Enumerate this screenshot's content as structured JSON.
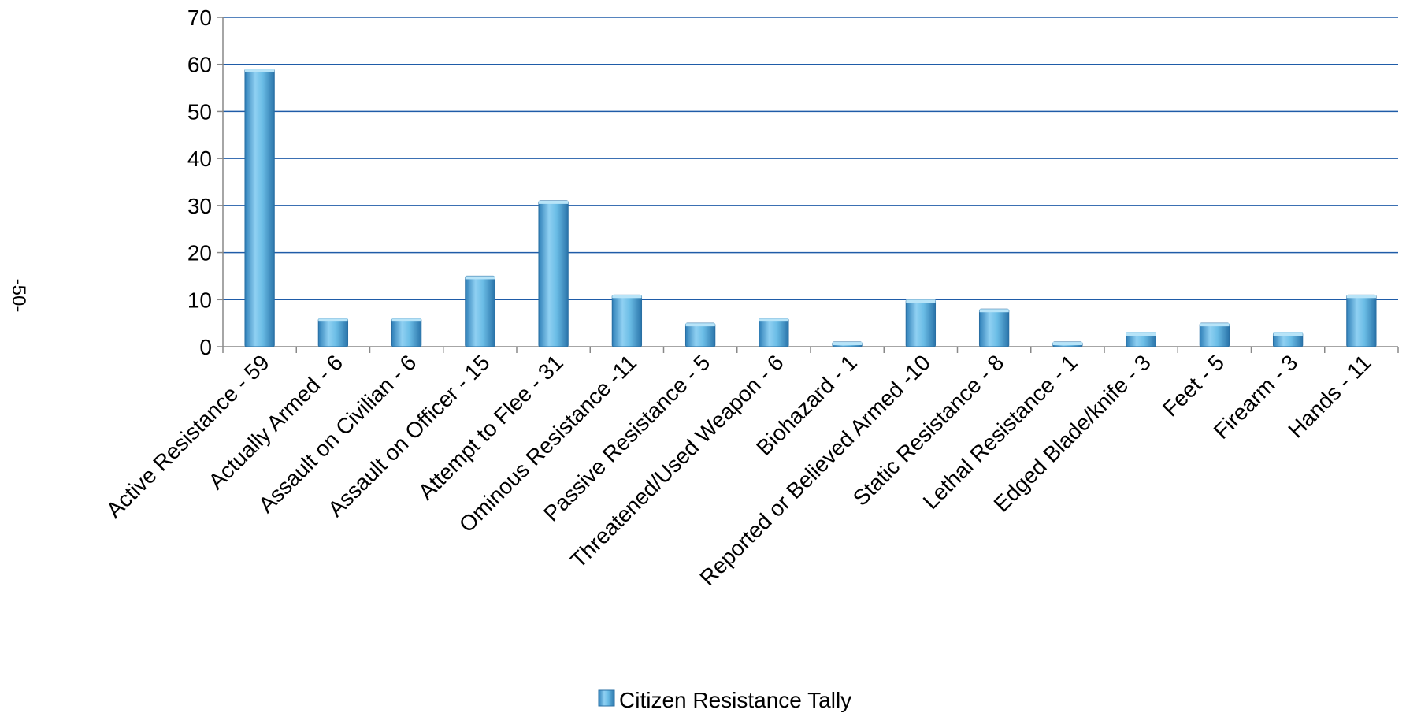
{
  "page": {
    "number_label": "-50-"
  },
  "legend": {
    "label": "Citizen Resistance Tally"
  },
  "chart_data": {
    "type": "bar",
    "title": "",
    "xlabel": "",
    "ylabel": "",
    "ylim": [
      0,
      70
    ],
    "ytick_step": 10,
    "grid": true,
    "legend_position": "bottom",
    "bar_color": "#5AAFDE",
    "grid_color": "#1F5CA8",
    "categories": [
      "Active Resistance - 59",
      "Actually Armed - 6",
      "Assault on Civilian - 6",
      "Assault on Officer - 15",
      "Attempt to Flee - 31",
      "Ominous Resistance -11",
      "Passive Resistance - 5",
      "Threatened/Used Weapon - 6",
      "Biohazard - 1",
      "Reported or Believed Armed -10",
      "Static Resistance - 8",
      "Lethal Resistance - 1",
      "Edged Blade/knife - 3",
      "Feet - 5",
      "Firearm - 3",
      "Hands - 11"
    ],
    "series": [
      {
        "name": "Citizen Resistance Tally",
        "values": [
          59,
          6,
          6,
          15,
          31,
          11,
          5,
          6,
          1,
          10,
          8,
          1,
          3,
          5,
          3,
          11
        ]
      }
    ]
  }
}
